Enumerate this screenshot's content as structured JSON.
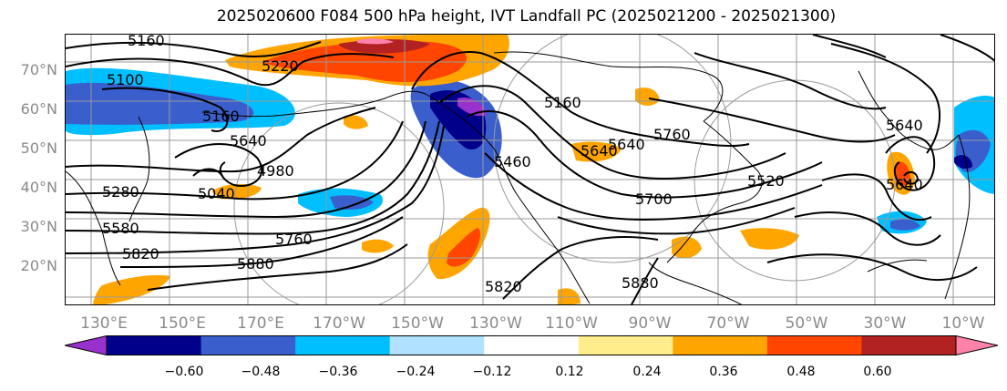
{
  "title": "2025020600 F084 500 hPa height, IVT Landfall PC (2025021200 - 2025021300)",
  "lat_labels": [
    "70°N",
    "60°N",
    "50°N",
    "40°N",
    "30°N",
    "20°N"
  ],
  "lon_labels": [
    "130°E",
    "150°E",
    "170°E",
    "170°W",
    "150°W",
    "130°W",
    "110°W",
    "90°W",
    "70°W",
    "50°W",
    "30°W",
    "10°W"
  ],
  "contour_labels": [
    "5160",
    "5220",
    "5100",
    "5160",
    "5640",
    "4980",
    "5040",
    "5280",
    "5580",
    "5820",
    "5880",
    "5760",
    "5460",
    "5160",
    "5820",
    "5760",
    "5700",
    "5880",
    "5640",
    "5520",
    "5640",
    "5640",
    "5640"
  ],
  "colorbar": {
    "ticks": [
      "−0.60",
      "−0.48",
      "−0.36",
      "−0.24",
      "−0.12",
      "0.12",
      "0.24",
      "0.36",
      "0.48",
      "0.60"
    ],
    "colors": [
      "#9932cc",
      "#00008b",
      "#3a5fcd",
      "#00bfff",
      "#b0e2ff",
      "#ffffff",
      "#ffec8b",
      "#ffa500",
      "#ff4500",
      "#b22222",
      "#ff82ab"
    ]
  }
}
